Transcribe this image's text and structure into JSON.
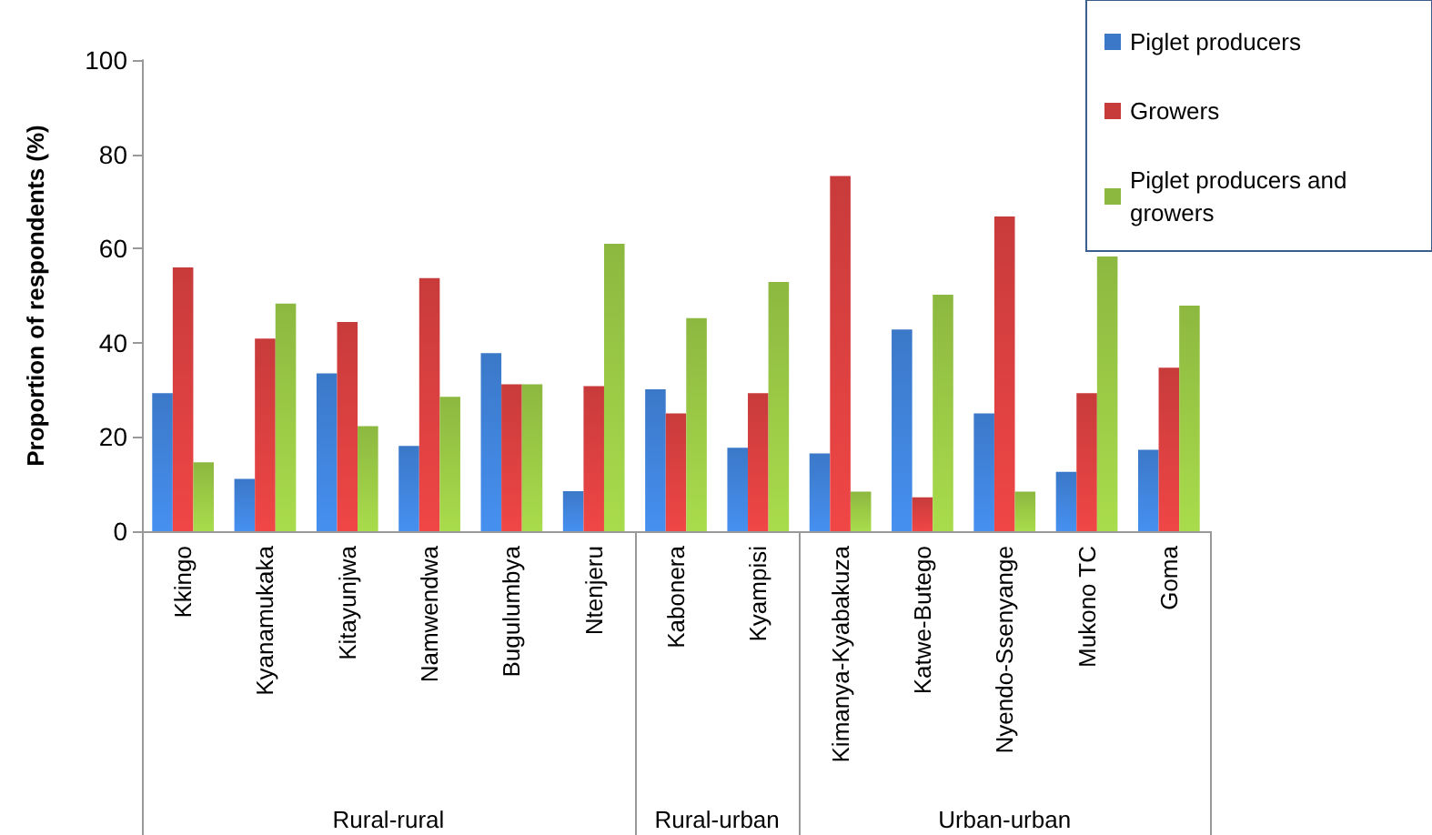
{
  "chart_data": {
    "type": "bar",
    "ylabel": "Proportion of respondents (%)",
    "categories": [
      "Kkingo",
      "Kyanamukaka",
      "Kitayunjwa",
      "Namwendwa",
      "Bugulumbya",
      "Ntenjeru",
      "Kabonera",
      "Kyampisi",
      "Kimanya-Kyabakuza",
      "Katwe-Butego",
      "Nyendo-Ssenyange",
      "Mukono TC",
      "Goma"
    ],
    "series": [
      {
        "name": "Piglet producers",
        "color": "#3b78c8",
        "values": [
          29.3,
          11.1,
          33.5,
          18.1,
          37.8,
          8.5,
          30.1,
          17.7,
          16.5,
          42.8,
          25,
          12.6,
          17.3
        ]
      },
      {
        "name": "Growers",
        "color": "#c83b3b",
        "values": [
          56,
          40.9,
          44.4,
          53.7,
          31.2,
          30.8,
          25,
          29.3,
          75.4,
          7.2,
          66.8,
          29.3,
          34.7
        ]
      },
      {
        "name": "Piglet producers and growers",
        "color": "#8db840",
        "values": [
          14.6,
          48.3,
          22.3,
          28.5,
          31.2,
          61,
          45.2,
          52.9,
          8.4,
          50.2,
          8.4,
          58.3,
          47.9
        ]
      }
    ],
    "ylim": [
      0,
      100
    ],
    "yticks": [
      0,
      20,
      40,
      60,
      80,
      100
    ],
    "grid": false,
    "legend": "top right",
    "annotations": [
      "Rural-rural",
      "Rural-urban",
      "Urban-urban"
    ]
  }
}
